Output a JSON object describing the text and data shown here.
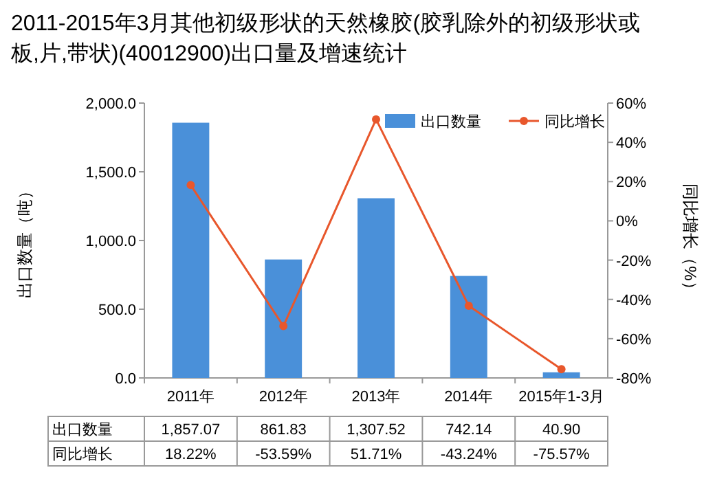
{
  "chart_data": {
    "type": "bar",
    "title": "2011-2015年3月其他初级形状的天然橡胶(胶乳除外的初级形状或板,片,带状)(40012900)出口量及增速统计",
    "categories": [
      "2011年",
      "2012年",
      "2013年",
      "2014年",
      "2015年1-3月"
    ],
    "series": [
      {
        "name": "出口数量",
        "color": "#4a90d9",
        "values": [
          1857.07,
          861.83,
          1307.52,
          742.14,
          40.9
        ],
        "value_labels": [
          "1,857.07",
          "861.83",
          "1,307.52",
          "742.14",
          "40.90"
        ]
      },
      {
        "name": "同比增长",
        "type": "line",
        "axis": "y2",
        "color": "#e8572c",
        "marker": "circle",
        "values": [
          18.22,
          -53.59,
          51.71,
          -43.24,
          -75.57
        ],
        "value_labels": [
          "18.22%",
          "-53.59%",
          "51.71%",
          "-43.24%",
          "-75.57%"
        ]
      }
    ],
    "ylabel": "出口数量（吨）",
    "y2label": "同比增长（%）",
    "ylim": [
      0,
      2000
    ],
    "yticks": [
      {
        "value": 0,
        "label": "0.0"
      },
      {
        "value": 500,
        "label": "500.0"
      },
      {
        "value": 1000,
        "label": "1,000.0"
      },
      {
        "value": 1500,
        "label": "1,500.0"
      },
      {
        "value": 2000,
        "label": "2,000.0"
      }
    ],
    "y2lim": [
      -80,
      60
    ],
    "y2ticks": [
      {
        "value": -80,
        "label": "-80%"
      },
      {
        "value": -60,
        "label": "-60%"
      },
      {
        "value": -40,
        "label": "-40%"
      },
      {
        "value": -20,
        "label": "-20%"
      },
      {
        "value": 0,
        "label": "0%"
      },
      {
        "value": 20,
        "label": "20%"
      },
      {
        "value": 40,
        "label": "40%"
      },
      {
        "value": 60,
        "label": "60%"
      }
    ],
    "legend": "top right"
  }
}
